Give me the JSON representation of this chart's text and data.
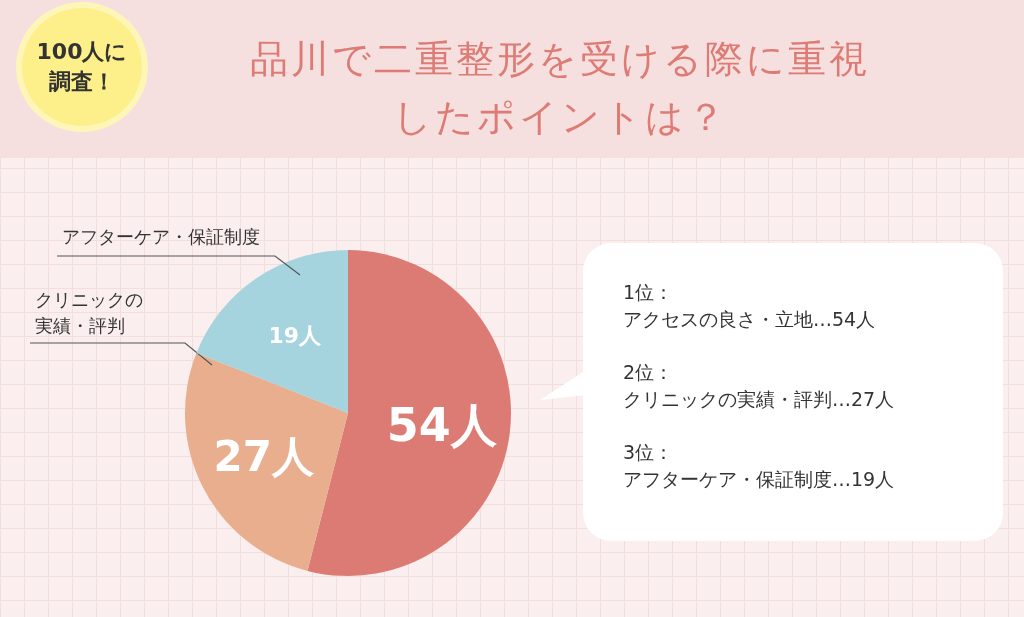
{
  "chart_data": {
    "type": "pie",
    "title": "品川で二重整形を受ける際に重視したポイントは？",
    "categories": [
      null,
      "クリニックの実績・評判",
      "アフターケア・保証制度"
    ],
    "values": [
      54,
      27,
      19
    ],
    "value_labels": [
      "54人",
      "27人",
      "19人"
    ],
    "colors": [
      "#dc7b74",
      "#e8ae8e",
      "#a5d3de"
    ],
    "annotations": [
      "100人に調査！",
      "1位：",
      "アクセスの良さ・立地…54人",
      "2位：",
      "クリニックの実績・評判…27人",
      "3位：",
      "アフターケア・保証制度…19人"
    ]
  }
}
